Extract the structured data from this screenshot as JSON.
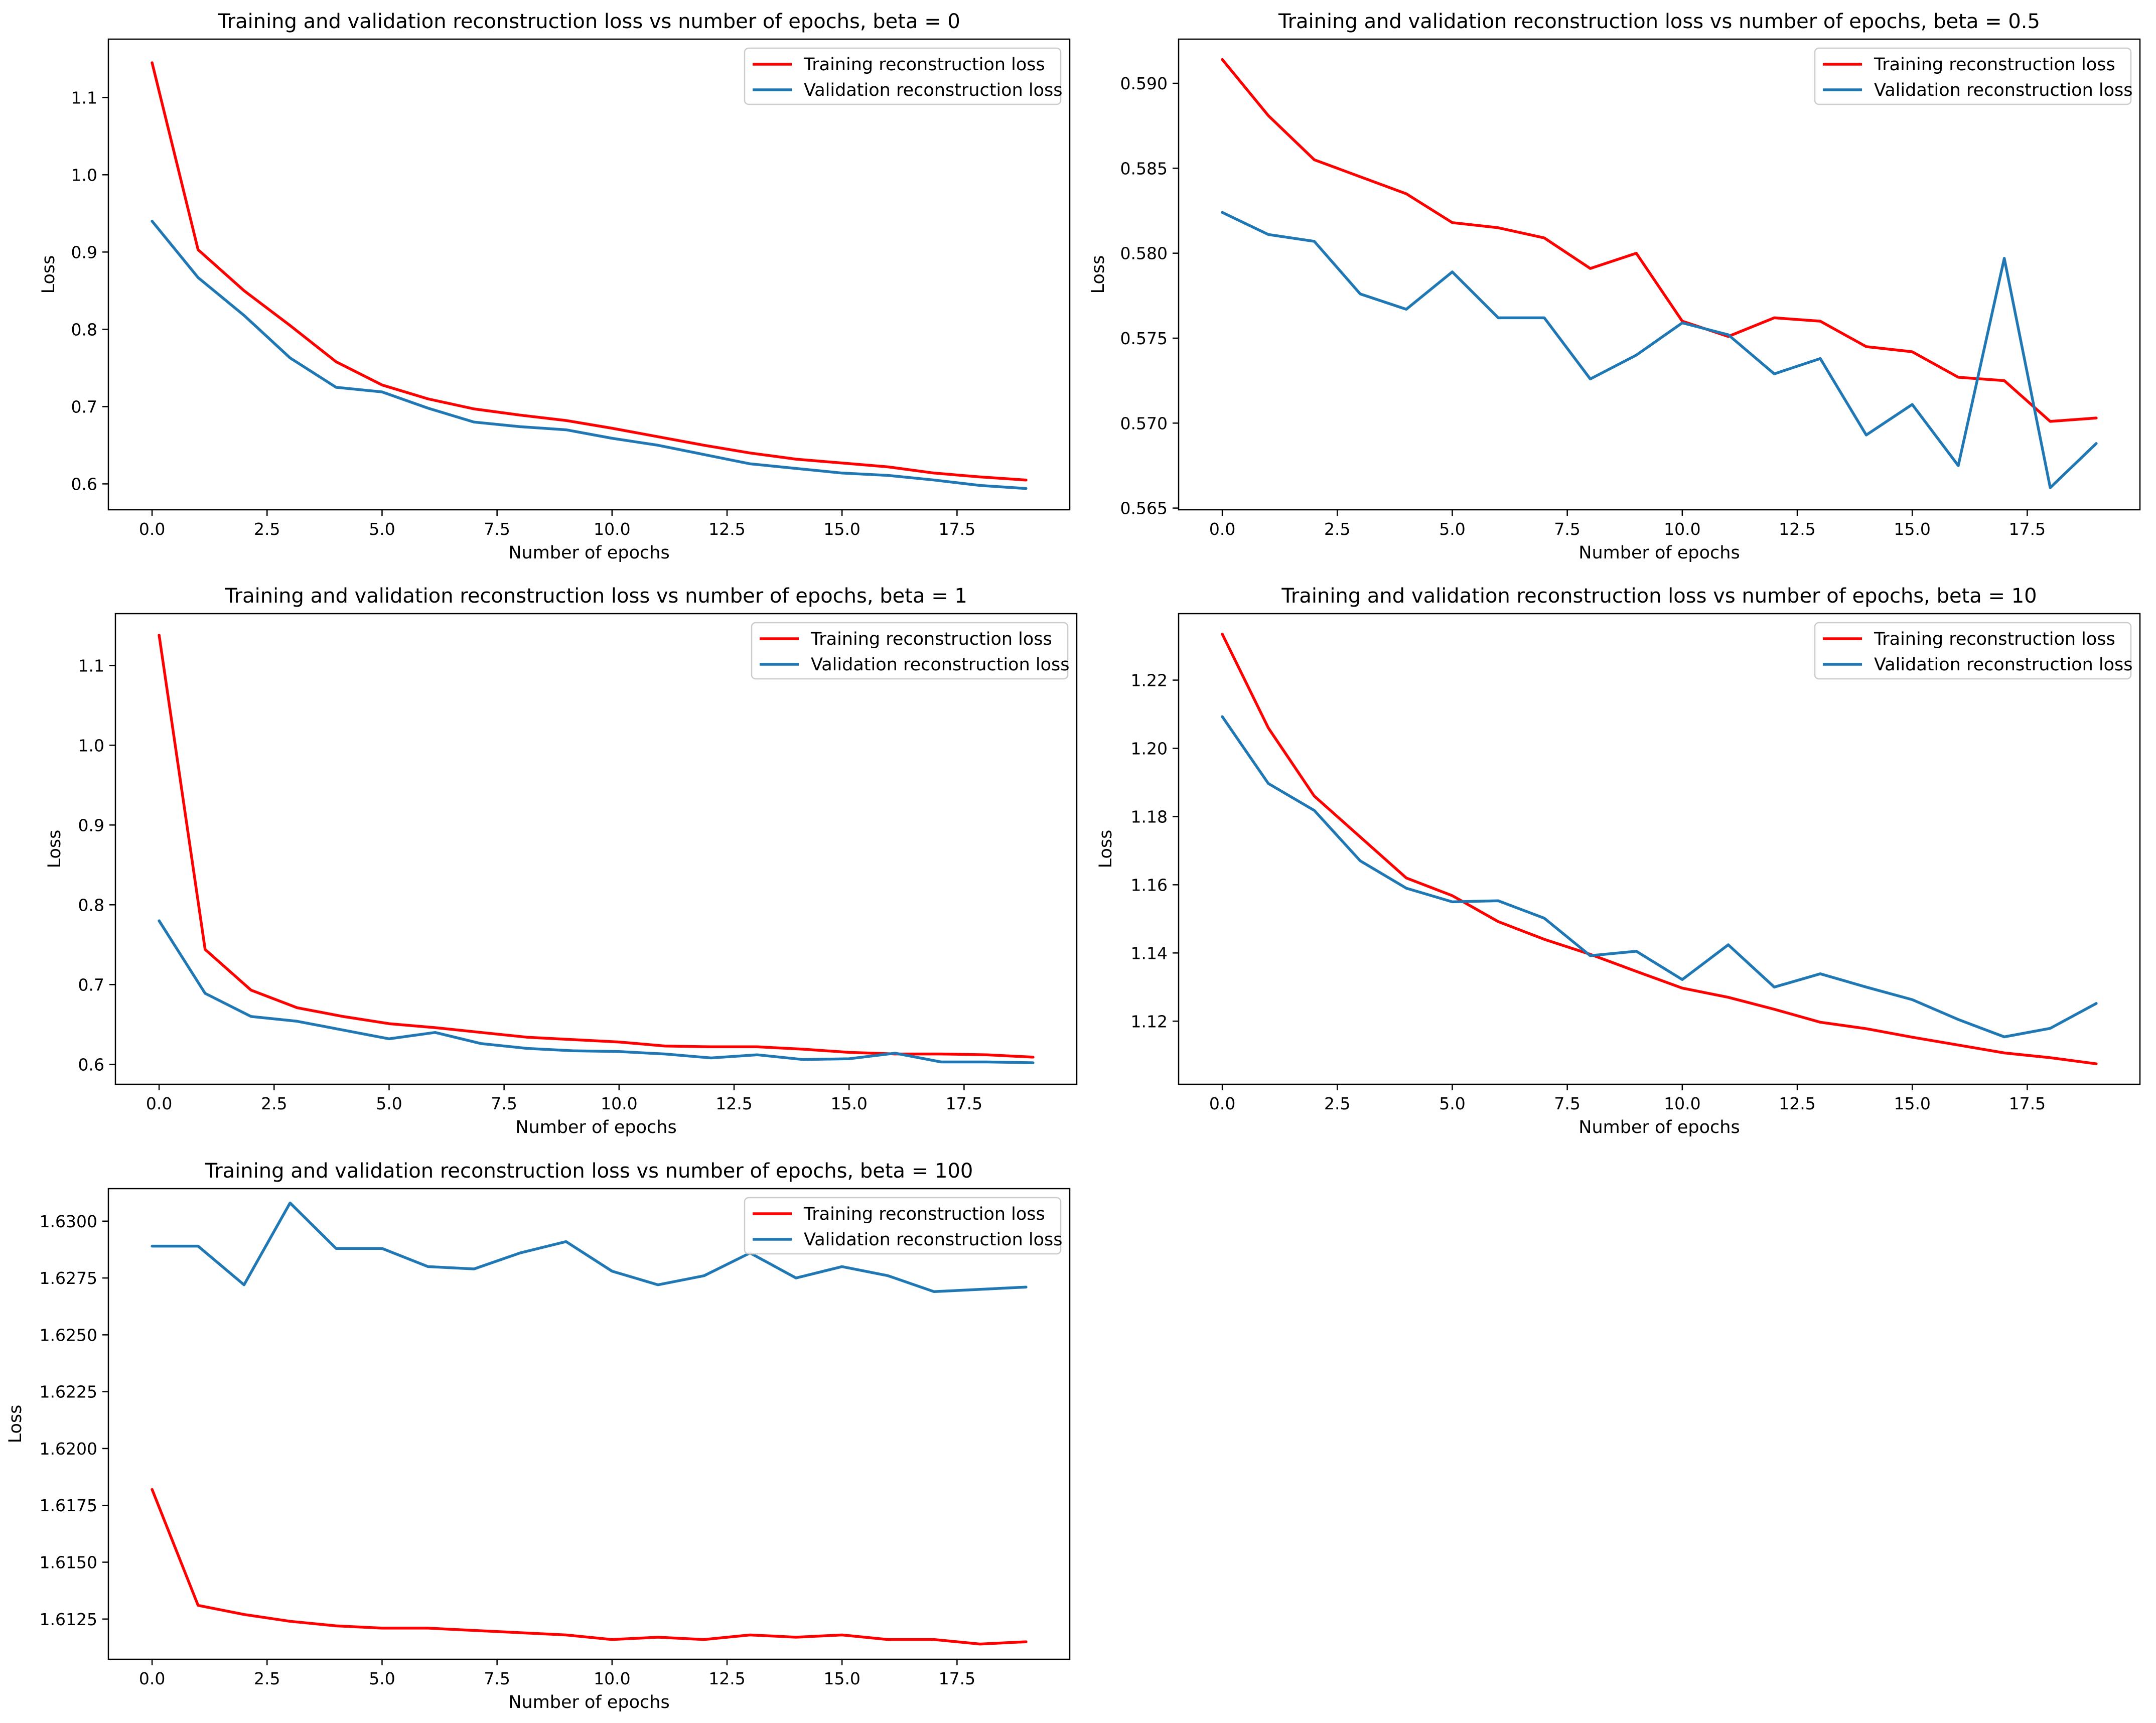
{
  "colors": {
    "training": "#ff0000",
    "validation": "#1f77b4",
    "background": "#ffffff",
    "axes": "#000000"
  },
  "chart_data": [
    {
      "type": "line",
      "title": "Training and validation reconstruction loss vs number of epochs, beta = 0",
      "xlabel": "Number of epochs",
      "ylabel": "Loss",
      "xlim": [
        -0.95,
        19.95
      ],
      "ylim": [
        0.5665,
        1.1755
      ],
      "xticks": [
        0,
        2.5,
        5,
        7.5,
        10,
        12.5,
        15,
        17.5
      ],
      "xtick_labels": [
        "0.0",
        "2.5",
        "5.0",
        "7.5",
        "10.0",
        "12.5",
        "15.0",
        "17.5"
      ],
      "yticks": [
        0.6,
        0.7,
        0.8,
        0.9,
        1.0,
        1.1
      ],
      "ytick_labels": [
        "0.6",
        "0.7",
        "0.8",
        "0.9",
        "1.0",
        "1.1"
      ],
      "legend_position": "upper right",
      "grid": false,
      "x": [
        0,
        1,
        2,
        3,
        4,
        5,
        6,
        7,
        8,
        9,
        10,
        11,
        12,
        13,
        14,
        15,
        16,
        17,
        18,
        19
      ],
      "series": [
        {
          "name": "Training reconstruction loss",
          "color_key": "training",
          "values": [
            1.145,
            0.903,
            0.85,
            0.805,
            0.758,
            0.728,
            0.71,
            0.697,
            0.689,
            0.682,
            0.672,
            0.661,
            0.65,
            0.64,
            0.632,
            0.627,
            0.622,
            0.614,
            0.609,
            0.605
          ]
        },
        {
          "name": "Validation reconstruction loss",
          "color_key": "validation",
          "values": [
            0.94,
            0.867,
            0.818,
            0.763,
            0.725,
            0.719,
            0.698,
            0.68,
            0.674,
            0.67,
            0.659,
            0.65,
            0.638,
            0.626,
            0.62,
            0.614,
            0.611,
            0.605,
            0.598,
            0.594
          ]
        }
      ]
    },
    {
      "type": "line",
      "title": "Training and validation reconstruction loss vs number of epochs, beta = 0.5",
      "xlabel": "Number of epochs",
      "ylabel": "Loss",
      "xlim": [
        -0.95,
        19.95
      ],
      "ylim": [
        0.5649,
        0.5926
      ],
      "xticks": [
        0,
        2.5,
        5,
        7.5,
        10,
        12.5,
        15,
        17.5
      ],
      "xtick_labels": [
        "0.0",
        "2.5",
        "5.0",
        "7.5",
        "10.0",
        "12.5",
        "15.0",
        "17.5"
      ],
      "yticks": [
        0.565,
        0.57,
        0.575,
        0.58,
        0.585,
        0.59
      ],
      "ytick_labels": [
        "0.565",
        "0.570",
        "0.575",
        "0.580",
        "0.585",
        "0.590"
      ],
      "legend_position": "upper right",
      "grid": false,
      "x": [
        0,
        1,
        2,
        3,
        4,
        5,
        6,
        7,
        8,
        9,
        10,
        11,
        12,
        13,
        14,
        15,
        16,
        17,
        18,
        19
      ],
      "series": [
        {
          "name": "Training reconstruction loss",
          "color_key": "training",
          "values": [
            0.5914,
            0.5881,
            0.5855,
            0.5845,
            0.5835,
            0.5818,
            0.5815,
            0.5809,
            0.5791,
            0.58,
            0.576,
            0.5751,
            0.5762,
            0.576,
            0.5745,
            0.5742,
            0.5727,
            0.5725,
            0.5701,
            0.5703
          ]
        },
        {
          "name": "Validation reconstruction loss",
          "color_key": "validation",
          "values": [
            0.5824,
            0.5811,
            0.5807,
            0.5776,
            0.5767,
            0.5789,
            0.5762,
            0.5762,
            0.5726,
            0.574,
            0.5759,
            0.5752,
            0.5729,
            0.5738,
            0.5693,
            0.5711,
            0.5675,
            0.5797,
            0.5662,
            0.5688
          ]
        }
      ]
    },
    {
      "type": "line",
      "title": "Training and validation reconstruction loss vs number of epochs, beta = 1",
      "xlabel": "Number of epochs",
      "ylabel": "Loss",
      "xlim": [
        -0.95,
        19.95
      ],
      "ylim": [
        0.575,
        1.165
      ],
      "xticks": [
        0,
        2.5,
        5,
        7.5,
        10,
        12.5,
        15,
        17.5
      ],
      "xtick_labels": [
        "0.0",
        "2.5",
        "5.0",
        "7.5",
        "10.0",
        "12.5",
        "15.0",
        "17.5"
      ],
      "yticks": [
        0.6,
        0.7,
        0.8,
        0.9,
        1.0,
        1.1
      ],
      "ytick_labels": [
        "0.6",
        "0.7",
        "0.8",
        "0.9",
        "1.0",
        "1.1"
      ],
      "legend_position": "upper right",
      "grid": false,
      "x": [
        0,
        1,
        2,
        3,
        4,
        5,
        6,
        7,
        8,
        9,
        10,
        11,
        12,
        13,
        14,
        15,
        16,
        17,
        18,
        19
      ],
      "series": [
        {
          "name": "Training reconstruction loss",
          "color_key": "training",
          "values": [
            1.138,
            0.744,
            0.693,
            0.671,
            0.66,
            0.651,
            0.646,
            0.64,
            0.634,
            0.631,
            0.628,
            0.623,
            0.622,
            0.622,
            0.619,
            0.615,
            0.613,
            0.613,
            0.612,
            0.609
          ]
        },
        {
          "name": "Validation reconstruction loss",
          "color_key": "validation",
          "values": [
            0.78,
            0.689,
            0.66,
            0.654,
            0.643,
            0.632,
            0.64,
            0.626,
            0.62,
            0.617,
            0.616,
            0.613,
            0.608,
            0.612,
            0.606,
            0.607,
            0.614,
            0.603,
            0.603,
            0.602
          ]
        }
      ]
    },
    {
      "type": "line",
      "title": "Training and validation reconstruction loss vs number of epochs, beta = 10",
      "xlabel": "Number of epochs",
      "ylabel": "Loss",
      "xlim": [
        -0.95,
        19.95
      ],
      "ylim": [
        1.1015,
        1.2395
      ],
      "xticks": [
        0,
        2.5,
        5,
        7.5,
        10,
        12.5,
        15,
        17.5
      ],
      "xtick_labels": [
        "0.0",
        "2.5",
        "5.0",
        "7.5",
        "10.0",
        "12.5",
        "15.0",
        "17.5"
      ],
      "yticks": [
        1.12,
        1.14,
        1.16,
        1.18,
        1.2,
        1.22
      ],
      "ytick_labels": [
        "1.12",
        "1.14",
        "1.16",
        "1.18",
        "1.20",
        "1.22"
      ],
      "legend_position": "upper right",
      "grid": false,
      "x": [
        0,
        1,
        2,
        3,
        4,
        5,
        6,
        7,
        8,
        9,
        10,
        11,
        12,
        13,
        14,
        15,
        16,
        17,
        18,
        19
      ],
      "series": [
        {
          "name": "Training reconstruction loss",
          "color_key": "training",
          "values": [
            1.2335,
            1.206,
            1.186,
            1.174,
            1.162,
            1.1568,
            1.1492,
            1.144,
            1.1396,
            1.1346,
            1.1297,
            1.127,
            1.1235,
            1.1197,
            1.1178,
            1.1153,
            1.113,
            1.1107,
            1.1093,
            1.1075
          ]
        },
        {
          "name": "Validation reconstruction loss",
          "color_key": "validation",
          "values": [
            1.2093,
            1.1897,
            1.1818,
            1.167,
            1.159,
            1.155,
            1.1553,
            1.1502,
            1.1392,
            1.1405,
            1.1322,
            1.1424,
            1.13,
            1.1339,
            1.13,
            1.1263,
            1.1205,
            1.1154,
            1.1179,
            1.1252
          ]
        }
      ]
    },
    {
      "type": "line",
      "title": "Training and validation reconstruction loss vs number of epochs, beta = 100",
      "xlabel": "Number of epochs",
      "ylabel": "Loss",
      "xlim": [
        -0.95,
        19.95
      ],
      "ylim": [
        1.61073,
        1.63143
      ],
      "xticks": [
        0,
        2.5,
        5,
        7.5,
        10,
        12.5,
        15,
        17.5
      ],
      "xtick_labels": [
        "0.0",
        "2.5",
        "5.0",
        "7.5",
        "10.0",
        "12.5",
        "15.0",
        "17.5"
      ],
      "yticks": [
        1.6125,
        1.615,
        1.6175,
        1.62,
        1.6225,
        1.625,
        1.6275,
        1.63
      ],
      "ytick_labels": [
        "1.6125",
        "1.6150",
        "1.6175",
        "1.6200",
        "1.6225",
        "1.6250",
        "1.6275",
        "1.6300"
      ],
      "legend_position": "upper right",
      "grid": false,
      "x": [
        0,
        1,
        2,
        3,
        4,
        5,
        6,
        7,
        8,
        9,
        10,
        11,
        12,
        13,
        14,
        15,
        16,
        17,
        18,
        19
      ],
      "series": [
        {
          "name": "Training reconstruction loss",
          "color_key": "training",
          "values": [
            1.6182,
            1.6131,
            1.6127,
            1.6124,
            1.6122,
            1.6121,
            1.6121,
            1.612,
            1.6119,
            1.6118,
            1.6116,
            1.6117,
            1.6116,
            1.6118,
            1.6117,
            1.6118,
            1.6116,
            1.6116,
            1.6114,
            1.6115
          ]
        },
        {
          "name": "Validation reconstruction loss",
          "color_key": "validation",
          "values": [
            1.6289,
            1.6289,
            1.6272,
            1.6308,
            1.6288,
            1.6288,
            1.628,
            1.6279,
            1.6286,
            1.6291,
            1.6278,
            1.6272,
            1.6276,
            1.6286,
            1.6275,
            1.628,
            1.6276,
            1.6269,
            1.627,
            1.6271
          ]
        }
      ]
    }
  ]
}
